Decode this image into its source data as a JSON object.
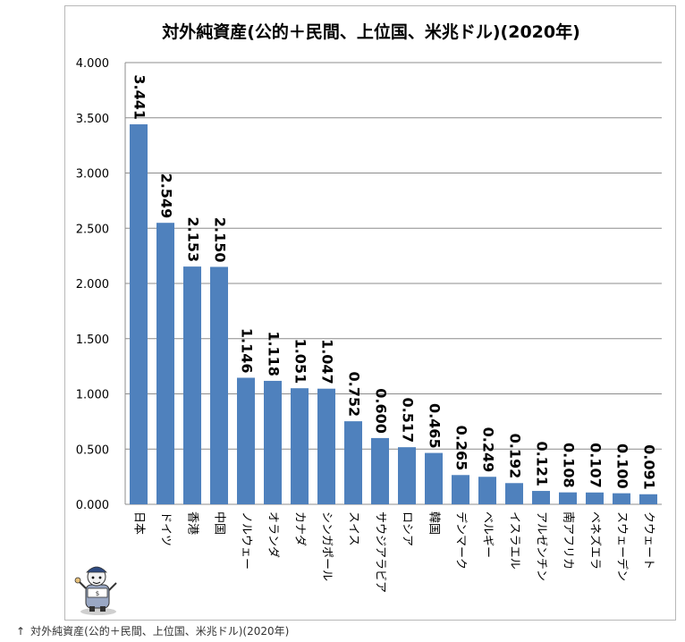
{
  "chart_data": {
    "type": "bar",
    "title": "対外純資産(公的＋民間、上位国、米兆ドル)(2020年)",
    "xlabel": "",
    "ylabel": "",
    "ylim": [
      0,
      4
    ],
    "yticks": [
      "0.000",
      "0.500",
      "1.000",
      "1.500",
      "2.000",
      "2.500",
      "3.000",
      "3.500",
      "4.000"
    ],
    "categories": [
      "日本",
      "ドイツ",
      "香港",
      "中国",
      "ノルウェー",
      "オランダ",
      "カナダ",
      "シンガポール",
      "スイス",
      "サウジアラビア",
      "ロシア",
      "韓国",
      "デンマーク",
      "ベルギー",
      "イスラエル",
      "アルゼンチン",
      "南アフリカ",
      "ベネズエラ",
      "スウェーデン",
      "クウェート"
    ],
    "values": [
      3.441,
      2.549,
      2.153,
      2.15,
      1.146,
      1.118,
      1.051,
      1.047,
      0.752,
      0.6,
      0.517,
      0.465,
      0.265,
      0.249,
      0.192,
      0.121,
      0.108,
      0.107,
      0.1,
      0.091
    ],
    "value_labels": [
      "3.441",
      "2.549",
      "2.153",
      "2.150",
      "1.146",
      "1.118",
      "1.051",
      "1.047",
      "0.752",
      "0.600",
      "0.517",
      "0.465",
      "0.265",
      "0.249",
      "0.192",
      "0.121",
      "0.108",
      "0.107",
      "0.100",
      "0.091"
    ],
    "grid": true,
    "legend": "none"
  },
  "colors": {
    "bar": "#4f81bd",
    "grid": "#8c8c8c",
    "text": "#000000"
  },
  "caption": {
    "arrow": "↑",
    "text": "対外純資産(公的＋民間、上位国、米兆ドル)(2020年)"
  },
  "mascot": {
    "icon": "mascot-icon"
  }
}
